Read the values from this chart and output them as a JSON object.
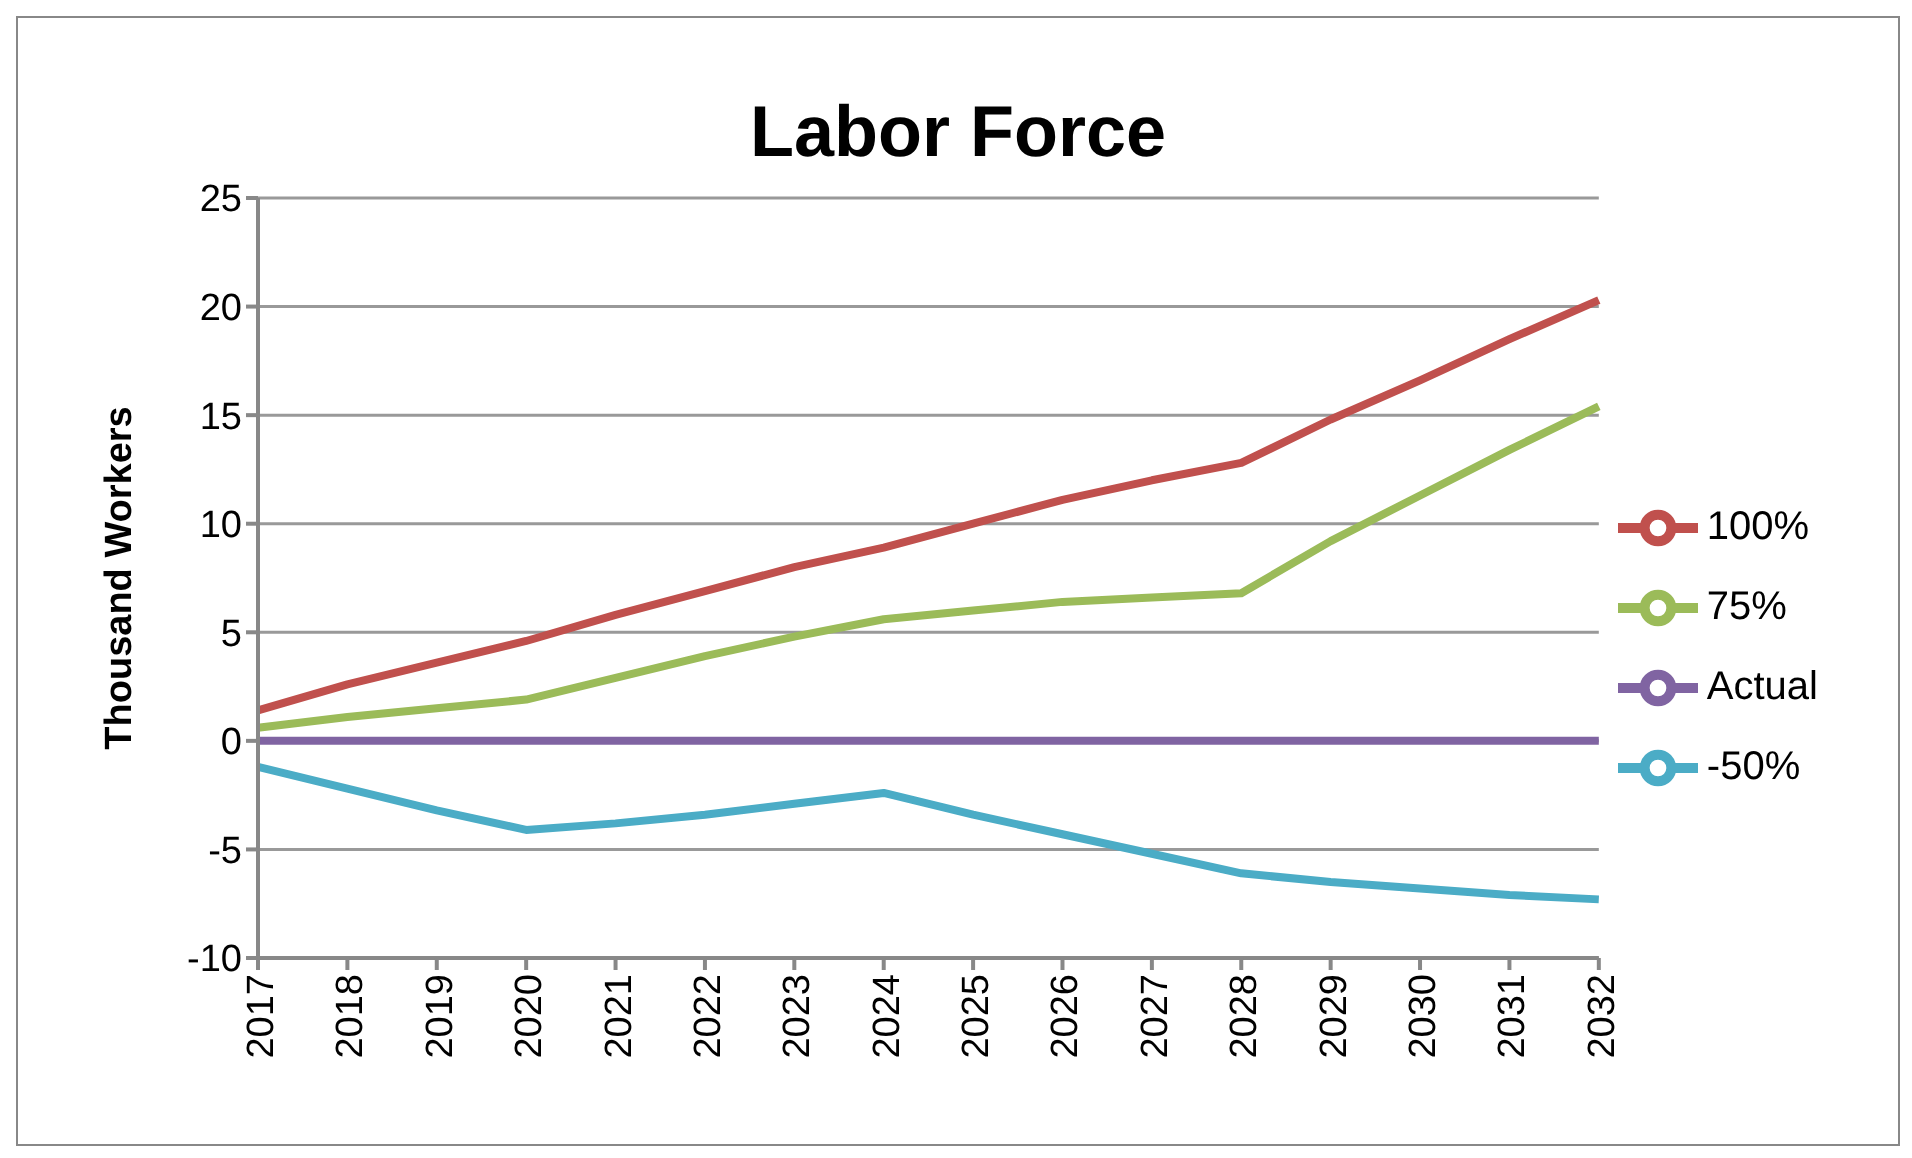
{
  "chart_data": {
    "type": "line",
    "title": "Labor Force",
    "ylabel": "Thousand Workers",
    "categories": [
      "2017",
      "2018",
      "2019",
      "2020",
      "2021",
      "2022",
      "2023",
      "2024",
      "2025",
      "2026",
      "2027",
      "2028",
      "2029",
      "2030",
      "2031",
      "2032"
    ],
    "series": [
      {
        "name": "100%",
        "color": "#c0504d",
        "values": [
          1.4,
          2.6,
          3.6,
          4.6,
          5.8,
          6.9,
          8.0,
          8.9,
          10.0,
          11.1,
          12.0,
          12.8,
          14.8,
          16.6,
          18.5,
          20.3
        ]
      },
      {
        "name": "75%",
        "color": "#9bbb59",
        "values": [
          0.6,
          1.1,
          1.5,
          1.9,
          2.9,
          3.9,
          4.8,
          5.6,
          6.0,
          6.4,
          6.6,
          6.8,
          9.2,
          11.3,
          13.4,
          15.4
        ]
      },
      {
        "name": "Actual",
        "color": "#8064a2",
        "values": [
          0,
          0,
          0,
          0,
          0,
          0,
          0,
          0,
          0,
          0,
          0,
          0,
          0,
          0,
          0,
          0
        ]
      },
      {
        "name": "-50%",
        "color": "#4bacc6",
        "values": [
          -1.2,
          -2.2,
          -3.2,
          -4.1,
          -3.8,
          -3.4,
          -2.9,
          -2.4,
          -3.4,
          -4.3,
          -5.2,
          -6.1,
          -6.5,
          -6.8,
          -7.1,
          -7.3
        ]
      }
    ],
    "ylim": [
      -10,
      25
    ],
    "yticks": [
      -10,
      -5,
      0,
      5,
      10,
      15,
      20,
      25
    ],
    "grid": "y",
    "legend": "right",
    "marker": "none",
    "line_style": "solid"
  }
}
